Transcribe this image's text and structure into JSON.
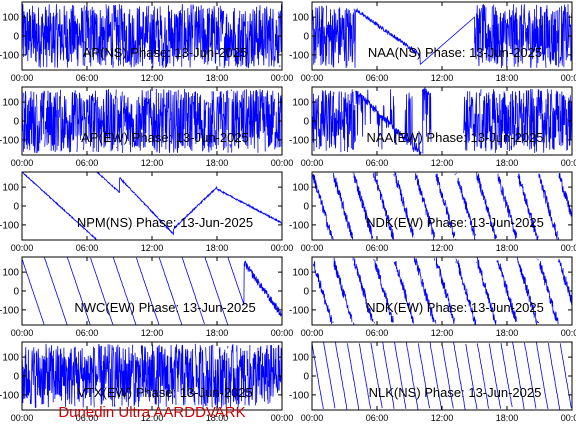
{
  "footer": {
    "text": "Dunedin Ultra AARDDVARK",
    "color": "#cc0000"
  },
  "colors": {
    "trace": "#0000ff",
    "axis": "#000000",
    "background": "#ffffff"
  },
  "chart_data": [
    {
      "type": "line",
      "title": "AP(NS) Phase: 13-Jun-2025",
      "pattern": "noise-dense",
      "xticks": [
        "00:00",
        "06:00",
        "12:00",
        "18:00",
        "00:00"
      ],
      "xlim": [
        0,
        24
      ],
      "yticks": [
        -100,
        0,
        100
      ],
      "ylim": [
        -180,
        180
      ]
    },
    {
      "type": "line",
      "title": "NAA(NS) Phase: 13-Jun-2025",
      "pattern": "day-dense-night-curve",
      "xticks": [
        "00:00",
        "06:00",
        "12:00",
        "18:00",
        "00:00"
      ],
      "xlim": [
        0,
        24
      ],
      "yticks": [
        -100,
        0,
        100
      ],
      "ylim": [
        -180,
        180
      ]
    },
    {
      "type": "line",
      "title": "AP(EW) Phase: 13-Jun-2025",
      "pattern": "noise-dense",
      "xticks": [
        "00:00",
        "06:00",
        "12:00",
        "18:00",
        "00:00"
      ],
      "xlim": [
        0,
        24
      ],
      "yticks": [
        -100,
        0,
        100
      ],
      "ylim": [
        -180,
        180
      ]
    },
    {
      "type": "line",
      "title": "NAA(EW) Phase: 13-Jun-2025",
      "pattern": "day-dense-night-gap",
      "xticks": [
        "00:00",
        "06:00",
        "12:00",
        "18:00",
        "00:00"
      ],
      "xlim": [
        0,
        24
      ],
      "yticks": [
        -100,
        0,
        100
      ],
      "ylim": [
        -180,
        180
      ]
    },
    {
      "type": "line",
      "title": "NPM(NS) Phase: 13-Jun-2025",
      "pattern": "slow-wrap",
      "xticks": [
        "00:00",
        "06:00",
        "12:00",
        "18:00",
        "00:00"
      ],
      "xlim": [
        0,
        24
      ],
      "yticks": [
        -100,
        0,
        100
      ],
      "ylim": [
        -180,
        180
      ]
    },
    {
      "type": "line",
      "title": "NDK(EW) Phase: 13-Jun-2025",
      "pattern": "fast-sawtooth-noisy",
      "xticks": [
        "00:00",
        "06:00",
        "12:00",
        "18:00",
        "00:00"
      ],
      "xlim": [
        0,
        24
      ],
      "yticks": [
        -100,
        0,
        100
      ],
      "ylim": [
        -180,
        180
      ]
    },
    {
      "type": "line",
      "title": "NWC(EW) Phase: 13-Jun-2025",
      "pattern": "regular-sawtooth",
      "xticks": [
        "00:00",
        "06:00",
        "12:00",
        "18:00",
        "00:00"
      ],
      "xlim": [
        0,
        24
      ],
      "yticks": [
        -100,
        0,
        100
      ],
      "ylim": [
        -180,
        180
      ]
    },
    {
      "type": "line",
      "title": "NDK(EW) Phase: 13-Jun-2025",
      "pattern": "fast-sawtooth-noisy",
      "xticks": [
        "00:00",
        "06:00",
        "12:00",
        "18:00",
        "00:00"
      ],
      "xlim": [
        0,
        24
      ],
      "yticks": [
        -100,
        0,
        100
      ],
      "ylim": [
        -180,
        180
      ]
    },
    {
      "type": "line",
      "title": "VTX(EW) Phase: 13-Jun-2025",
      "pattern": "noise-dense",
      "xticks": [
        "00:00",
        "06:00",
        "12:00",
        "18:00",
        "00:00"
      ],
      "xlim": [
        0,
        24
      ],
      "yticks": [
        -100,
        0,
        100
      ],
      "ylim": [
        -180,
        180
      ]
    },
    {
      "type": "line",
      "title": "NLK(NS) Phase: 13-Jun-2025",
      "pattern": "fine-sawtooth",
      "xticks": [
        "00:00",
        "06:00",
        "12:00",
        "18:00",
        "00:00"
      ],
      "xlim": [
        0,
        24
      ],
      "yticks": [
        -100,
        0,
        100
      ],
      "ylim": [
        -180,
        180
      ]
    }
  ]
}
